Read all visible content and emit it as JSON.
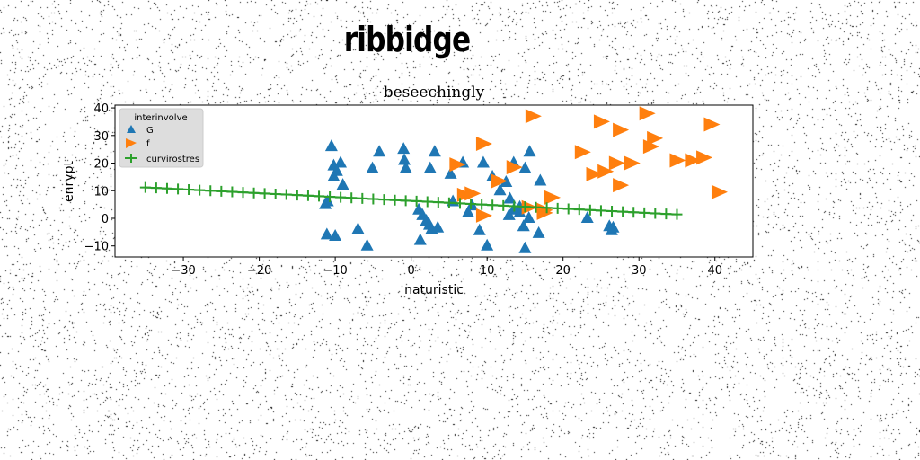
{
  "suptitle": "ribbidge",
  "chart_data": {
    "type": "scatter",
    "title": "beseechingly",
    "xlabel": "naturistic",
    "ylabel": "enrypt",
    "xlim": [
      -39,
      45
    ],
    "ylim": [
      -14,
      41
    ],
    "xticks": [
      -30,
      -20,
      -10,
      0,
      10,
      20,
      30,
      40
    ],
    "yticks": [
      -10,
      0,
      10,
      20,
      30,
      40
    ],
    "grid": false,
    "legend": {
      "title": "interinvolve",
      "placement": "top-left"
    },
    "series": [
      {
        "name": "G",
        "marker": "triangle-up",
        "color": "#1f77b4",
        "x": [
          -10.5,
          -10.2,
          -9.3,
          -10.2,
          -9.8,
          -9.0,
          -11.3,
          -11.0,
          -11.1,
          -10.0,
          -7.0,
          -5.8,
          -4.2,
          -5.1,
          -1.0,
          -0.9,
          -0.7,
          1.0,
          1.5,
          2.0,
          2.4,
          2.7,
          3.1,
          2.5,
          3.5,
          1.2,
          5.2,
          5.5,
          6.8,
          7.5,
          8.0,
          9.0,
          9.5,
          10.0,
          10.7,
          11.7,
          12.5,
          13.0,
          12.9,
          13.5,
          14.3,
          14.8,
          15.0,
          15.6,
          14.3,
          16.8,
          15.0,
          15.5,
          17.0,
          13.5,
          23.2,
          26.1,
          26.4,
          26.6
        ],
        "y": [
          26.0,
          19.0,
          20.0,
          15.0,
          17.0,
          12.0,
          5.0,
          6.0,
          -6.0,
          -6.5,
          -4.0,
          -10.0,
          24.0,
          18.0,
          25.0,
          21.0,
          18.0,
          3.0,
          1.0,
          -1.0,
          -2.5,
          -4.0,
          24.0,
          18.0,
          -3.5,
          -8.0,
          16.0,
          6.0,
          20.0,
          2.0,
          4.5,
          -4.5,
          20.0,
          -10.0,
          15.0,
          10.0,
          13.0,
          7.0,
          1.0,
          20.0,
          4.0,
          -3.0,
          18.0,
          24.0,
          2.0,
          -5.5,
          -11.0,
          0.0,
          13.5,
          3.0,
          0.0,
          -3.0,
          -4.5,
          -3.5
        ]
      },
      {
        "name": "f",
        "marker": "triangle-right",
        "color": "#ff7f0e",
        "x": [
          16.0,
          25.0,
          31.0,
          39.5,
          27.5,
          32.0,
          9.5,
          31.5,
          22.5,
          24.0,
          25.5,
          27.0,
          29.0,
          35.0,
          37.0,
          38.5,
          40.5,
          6.0,
          13.5,
          11.5,
          27.5,
          7.0,
          8.0,
          18.5,
          15.5,
          17.5,
          9.5,
          17.5
        ],
        "y": [
          37.0,
          35.0,
          38.0,
          34.0,
          32.0,
          29.0,
          27.0,
          26.0,
          24.0,
          16.0,
          17.0,
          20.0,
          20.0,
          21.0,
          21.0,
          22.0,
          9.5,
          19.5,
          18.5,
          13.5,
          12.0,
          8.5,
          9.0,
          7.5,
          4.0,
          3.0,
          1.0,
          2.0
        ]
      },
      {
        "name": "curvirostres",
        "marker": "plus-line",
        "color": "#2ca02c",
        "x": [
          -35.0,
          -33.57,
          -32.14,
          -30.71,
          -29.29,
          -27.86,
          -26.43,
          -25.0,
          -23.57,
          -22.14,
          -20.71,
          -19.29,
          -17.86,
          -16.43,
          -15.0,
          -13.57,
          -12.14,
          -10.71,
          -9.29,
          -7.86,
          -6.43,
          -5.0,
          -3.57,
          -2.14,
          -0.71,
          0.71,
          2.14,
          3.57,
          5.0,
          6.43,
          7.86,
          9.29,
          10.71,
          12.14,
          13.57,
          15.0,
          16.43,
          17.86,
          19.29,
          20.71,
          22.14,
          23.57,
          25.0,
          26.43,
          27.86,
          29.29,
          30.71,
          32.14,
          33.57,
          35.0
        ],
        "y": [
          11.2,
          11.0,
          10.8,
          10.6,
          10.4,
          10.2,
          10.0,
          9.8,
          9.6,
          9.4,
          9.2,
          9.0,
          8.8,
          8.6,
          8.4,
          8.2,
          8.0,
          7.8,
          7.6,
          7.4,
          7.2,
          7.0,
          6.8,
          6.6,
          6.4,
          6.2,
          6.0,
          5.8,
          5.6,
          5.4,
          5.2,
          5.0,
          4.8,
          4.6,
          4.4,
          4.2,
          4.0,
          3.8,
          3.6,
          3.4,
          3.2,
          3.0,
          2.8,
          2.6,
          2.4,
          2.2,
          2.0,
          1.8,
          1.6,
          1.4
        ]
      }
    ]
  }
}
